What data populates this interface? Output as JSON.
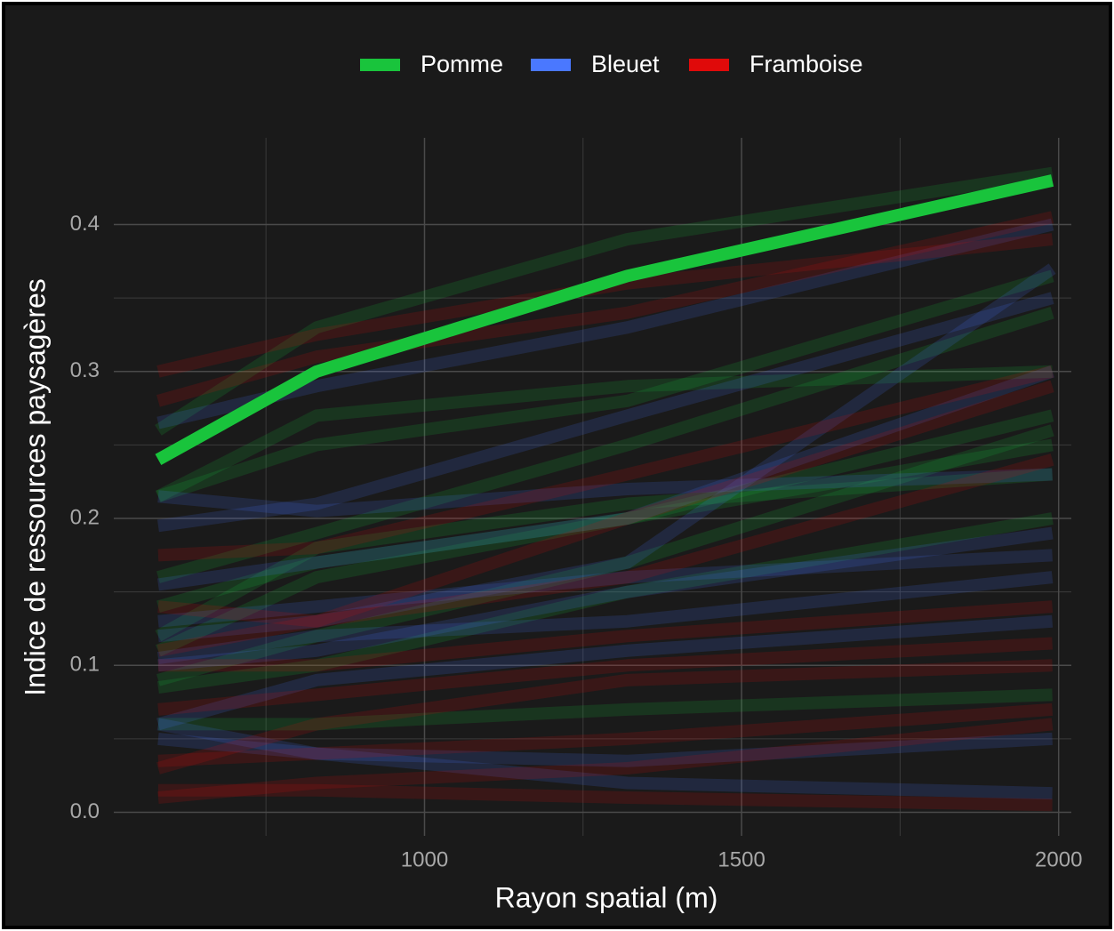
{
  "chart_data": {
    "type": "line",
    "x_label": "Rayon spatial (m)",
    "y_label": "Indice de ressources paysagères",
    "x": [
      580,
      830,
      1320,
      1990
    ],
    "xlim": [
      510,
      2020
    ],
    "xticks": [
      1000,
      1500,
      2000
    ],
    "x_minor_ticks": [
      750,
      1250,
      1750
    ],
    "ylim": [
      -0.016,
      0.459
    ],
    "yticks": [
      {
        "value": 0,
        "label": "0.0"
      },
      0.1,
      0.2,
      0.3,
      0.4
    ],
    "y_minor_ticks": [
      0.05,
      0.15,
      0.25,
      0.35
    ],
    "grid": true,
    "legend": "top",
    "series": [
      {
        "name": "Pomme",
        "color": "#19c43c",
        "lines": [
          [
            0.26,
            0.33,
            0.39,
            0.435
          ],
          [
            0.215,
            0.27,
            0.29,
            0.3
          ],
          [
            0.16,
            0.19,
            0.25,
            0.34
          ],
          [
            0.11,
            0.16,
            0.2,
            0.25
          ],
          [
            0.085,
            0.1,
            0.15,
            0.2
          ],
          [
            0.215,
            0.25,
            0.28,
            0.365
          ],
          [
            0.14,
            0.17,
            0.2,
            0.27
          ],
          [
            0.06,
            0.06,
            0.07,
            0.08
          ],
          [
            0.12,
            0.18,
            0.21,
            0.23
          ],
          [
            0.09,
            0.12,
            0.17,
            0.26
          ]
        ]
      },
      {
        "name": "Bleuet",
        "color": "#4a78ff",
        "lines": [
          [
            0.265,
            0.29,
            0.33,
            0.4
          ],
          [
            0.215,
            0.205,
            0.22,
            0.23
          ],
          [
            0.195,
            0.21,
            0.27,
            0.35
          ],
          [
            0.155,
            0.17,
            0.2,
            0.3
          ],
          [
            0.13,
            0.14,
            0.16,
            0.175
          ],
          [
            0.1,
            0.11,
            0.15,
            0.19
          ],
          [
            0.06,
            0.04,
            0.02,
            0.013
          ],
          [
            0.06,
            0.09,
            0.11,
            0.13
          ],
          [
            0.05,
            0.04,
            0.035,
            0.05
          ],
          [
            0.12,
            0.13,
            0.17,
            0.37
          ],
          [
            0.105,
            0.12,
            0.13,
            0.16
          ]
        ]
      },
      {
        "name": "Framboise",
        "color": "#e00a0a",
        "lines": [
          [
            0.3,
            0.325,
            0.36,
            0.39
          ],
          [
            0.28,
            0.31,
            0.34,
            0.405
          ],
          [
            0.175,
            0.18,
            0.23,
            0.3
          ],
          [
            0.14,
            0.13,
            0.2,
            0.29
          ],
          [
            0.11,
            0.13,
            0.16,
            0.24
          ],
          [
            0.1,
            0.1,
            0.12,
            0.14
          ],
          [
            0.03,
            0.06,
            0.09,
            0.1
          ],
          [
            0.035,
            0.04,
            0.05,
            0.07
          ],
          [
            0.015,
            0.015,
            0.01,
            0.005
          ],
          [
            0.01,
            0.02,
            0.03,
            0.06
          ],
          [
            0.07,
            0.08,
            0.1,
            0.115
          ]
        ]
      }
    ],
    "highlight": {
      "color": "#19c43c",
      "values": [
        0.24,
        0.3,
        0.365,
        0.43
      ]
    }
  }
}
